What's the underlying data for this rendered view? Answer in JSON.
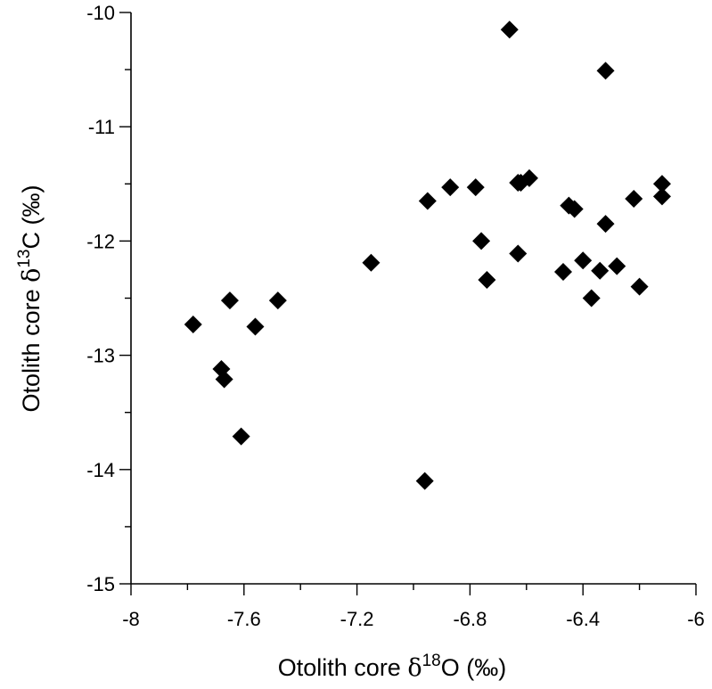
{
  "chart_data": {
    "type": "scatter",
    "title": "",
    "xlabel": {
      "prefix": "Otolith core ",
      "delta": "δ",
      "sup": "18",
      "element": "O",
      "unit": " (‰)"
    },
    "ylabel": {
      "prefix": "Otolith core ",
      "delta": "δ",
      "sup": "13",
      "element": "C",
      "unit": " (‰)"
    },
    "xlim": [
      -8,
      -6
    ],
    "ylim": [
      -15,
      -10
    ],
    "x_major_ticks": [
      -8,
      -7.6,
      -7.2,
      -6.8,
      -6.4,
      -6
    ],
    "x_tick_labels": [
      "-8",
      "-7.6",
      "-7.2",
      "-6.8",
      "-6.4",
      "-6"
    ],
    "x_minor_step": 0.2,
    "y_major_ticks": [
      -15,
      -14,
      -13,
      -12,
      -11,
      -10
    ],
    "y_tick_labels": [
      "-15",
      "-14",
      "-13",
      "-12",
      "-11",
      "-10"
    ],
    "y_minor_step": 0.5,
    "grid": false,
    "legend": "none",
    "marker": "diamond",
    "marker_color": "#000000",
    "series": [
      {
        "points": [
          [
            -7.78,
            -12.73
          ],
          [
            -7.68,
            -13.12
          ],
          [
            -7.67,
            -13.21
          ],
          [
            -7.65,
            -12.52
          ],
          [
            -7.61,
            -13.71
          ],
          [
            -7.56,
            -12.75
          ],
          [
            -7.48,
            -12.52
          ],
          [
            -7.15,
            -12.19
          ],
          [
            -6.96,
            -14.1
          ],
          [
            -6.95,
            -11.65
          ],
          [
            -6.87,
            -11.53
          ],
          [
            -6.78,
            -11.53
          ],
          [
            -6.76,
            -12.0
          ],
          [
            -6.74,
            -12.34
          ],
          [
            -6.66,
            -10.15
          ],
          [
            -6.63,
            -11.49
          ],
          [
            -6.63,
            -12.11
          ],
          [
            -6.62,
            -11.49
          ],
          [
            -6.59,
            -11.45
          ],
          [
            -6.47,
            -12.27
          ],
          [
            -6.45,
            -11.69
          ],
          [
            -6.43,
            -11.72
          ],
          [
            -6.4,
            -12.17
          ],
          [
            -6.37,
            -12.5
          ],
          [
            -6.34,
            -12.26
          ],
          [
            -6.32,
            -11.85
          ],
          [
            -6.32,
            -10.51
          ],
          [
            -6.28,
            -12.22
          ],
          [
            -6.22,
            -11.63
          ],
          [
            -6.2,
            -12.4
          ],
          [
            -6.12,
            -11.5
          ],
          [
            -6.12,
            -11.61
          ]
        ]
      }
    ]
  }
}
